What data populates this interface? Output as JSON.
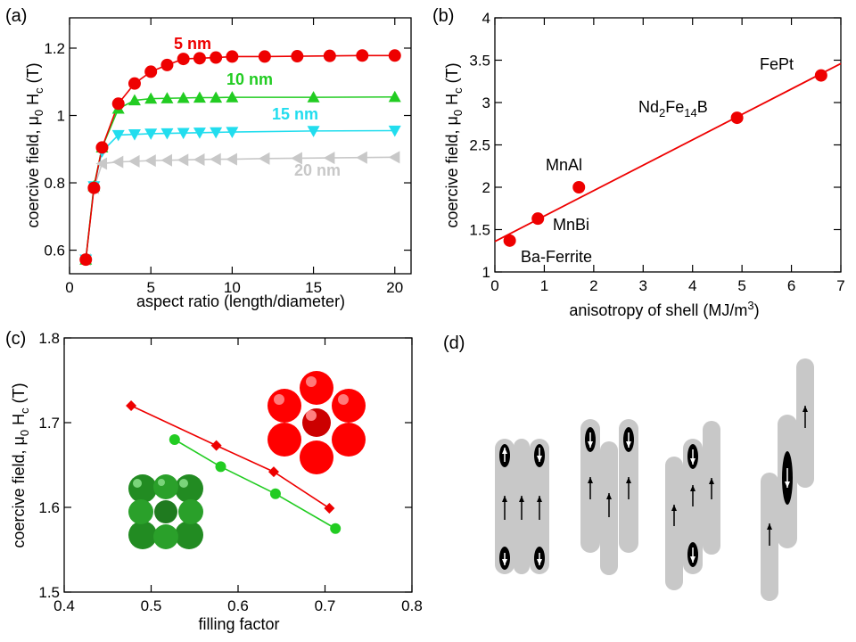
{
  "panels": {
    "a": "(a)",
    "b": "(b)",
    "c": "(c)",
    "d": "(d)"
  },
  "colors": {
    "red": "#ee0000",
    "green": "#22cc22",
    "cyan": "#22ddee",
    "gray": "#c8c8c8",
    "rod": "#c8c8c8",
    "core": "#000000"
  },
  "chart_data": [
    {
      "id": "a",
      "type": "line",
      "xlabel": "aspect ratio (length/diameter)",
      "ylabel": "coercive field, μ0 Hc (T)",
      "ylabel_parts": {
        "pre": "coercive field, μ",
        "sub1": "0",
        "mid": " H",
        "sub2": "c",
        "post": " (T)"
      },
      "xlim": [
        0,
        21
      ],
      "ylim": [
        0.53,
        1.29
      ],
      "xticks": [
        0,
        5,
        10,
        15,
        20
      ],
      "yticks": [
        0.6,
        0.8,
        1.0,
        1.2
      ],
      "ytick_labels": [
        "0.6",
        "0.8",
        "1",
        "1.2"
      ],
      "series": [
        {
          "name": "20 nm",
          "color": "#c8c8c8",
          "marker": "triangle-left",
          "x": [
            1,
            1.5,
            2,
            3,
            4,
            5,
            6,
            7,
            8,
            9,
            10,
            12,
            14,
            16,
            18,
            20
          ],
          "y": [
            0.572,
            0.785,
            0.857,
            0.862,
            0.864,
            0.866,
            0.867,
            0.868,
            0.869,
            0.87,
            0.87,
            0.872,
            0.873,
            0.874,
            0.875,
            0.876
          ]
        },
        {
          "name": "15 nm",
          "color": "#22ddee",
          "marker": "triangle-down",
          "x": [
            1,
            1.5,
            2,
            3,
            4,
            5,
            6,
            7,
            8,
            9,
            10,
            15,
            20
          ],
          "y": [
            0.572,
            0.79,
            0.893,
            0.942,
            0.944,
            0.946,
            0.947,
            0.948,
            0.949,
            0.95,
            0.951,
            0.954,
            0.955
          ]
        },
        {
          "name": "10 nm",
          "color": "#22cc22",
          "marker": "triangle-up",
          "x": [
            1,
            1.5,
            2,
            3,
            4,
            5,
            6,
            7,
            8,
            9,
            10,
            15,
            20
          ],
          "y": [
            0.572,
            0.79,
            0.905,
            1.02,
            1.045,
            1.05,
            1.051,
            1.052,
            1.053,
            1.053,
            1.054,
            1.054,
            1.055
          ]
        },
        {
          "name": "5 nm",
          "color": "#ee0000",
          "marker": "circle",
          "x": [
            1,
            1.5,
            2,
            3,
            4,
            5,
            6,
            7,
            8,
            9,
            10,
            12,
            14,
            16,
            18,
            20
          ],
          "y": [
            0.572,
            0.785,
            0.905,
            1.035,
            1.095,
            1.13,
            1.15,
            1.168,
            1.17,
            1.172,
            1.175,
            1.175,
            1.176,
            1.177,
            1.178,
            1.178
          ]
        }
      ],
      "annotations": [
        "5 nm",
        "10 nm",
        "15 nm",
        "20 nm"
      ]
    },
    {
      "id": "b",
      "type": "scatter",
      "xlabel": "anisotropy of shell (MJ/m3)",
      "xlabel_parts": {
        "pre": "anisotropy of shell (MJ/m",
        "sup": "3",
        "post": ")"
      },
      "ylabel": "coercive field, μ0 Hc (T)",
      "xlim": [
        0,
        7
      ],
      "ylim": [
        1,
        4
      ],
      "xticks": [
        0,
        1,
        2,
        3,
        4,
        5,
        6,
        7
      ],
      "yticks": [
        1,
        1.5,
        2,
        2.5,
        3,
        3.5,
        4
      ],
      "ytick_labels": [
        "1",
        "1.5",
        "2",
        "2.5",
        "3",
        "3.5",
        "4"
      ],
      "points": [
        {
          "label": "Ba-Ferrite",
          "x": 0.3,
          "y": 1.37
        },
        {
          "label": "MnBi",
          "x": 0.87,
          "y": 1.63
        },
        {
          "label": "MnAl",
          "x": 1.7,
          "y": 2.0
        },
        {
          "label": "Nd2Fe14B",
          "x": 4.9,
          "y": 2.82
        },
        {
          "label": "FePt",
          "x": 6.6,
          "y": 3.32
        }
      ],
      "fit_line": {
        "x": [
          0,
          7
        ],
        "y": [
          1.36,
          3.46
        ]
      },
      "label_parts": {
        "nd": {
          "a": "Nd",
          "s1": "2",
          "b": "Fe",
          "s2": "14",
          "c": "B"
        }
      }
    },
    {
      "id": "c",
      "type": "line",
      "xlabel": "filling factor",
      "ylabel": "coercive field, μ0 Hc (T)",
      "xlim": [
        0.4,
        0.8
      ],
      "ylim": [
        1.5,
        1.8
      ],
      "xticks": [
        0.4,
        0.5,
        0.6,
        0.7,
        0.8
      ],
      "yticks": [
        1.5,
        1.6,
        1.7,
        1.8
      ],
      "xtick_labels": [
        "0.4",
        "0.5",
        "0.6",
        "0.7",
        "0.8"
      ],
      "ytick_labels": [
        "1.5",
        "1.6",
        "1.7",
        "1.8"
      ],
      "series": [
        {
          "name": "hexagonal packing",
          "color": "#ee0000",
          "marker": "diamond",
          "x": [
            0.477,
            0.575,
            0.641,
            0.705
          ],
          "y": [
            1.72,
            1.673,
            1.642,
            1.599
          ]
        },
        {
          "name": "square packing",
          "color": "#22cc22",
          "marker": "circle",
          "x": [
            0.527,
            0.58,
            0.643,
            0.712
          ],
          "y": [
            1.68,
            1.648,
            1.616,
            1.575
          ]
        }
      ]
    }
  ]
}
